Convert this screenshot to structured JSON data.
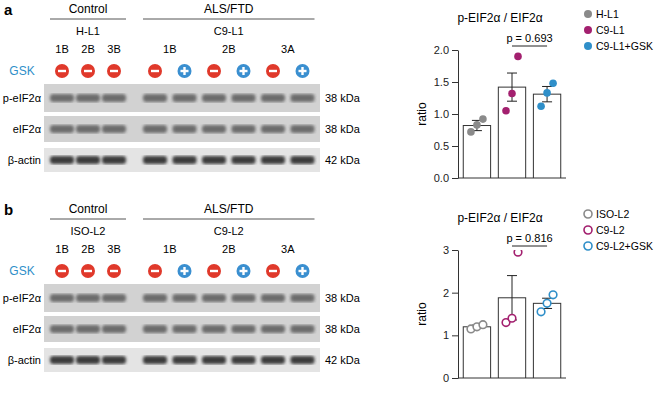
{
  "panel_labels": [
    "a",
    "b"
  ],
  "blots": [
    {
      "treatment_label": "GSK",
      "groups": [
        {
          "label": "Control",
          "sublabel": "H-L1",
          "lane_labels": [
            "1B",
            "2B",
            "3B"
          ],
          "lane_spans": [
            1,
            1,
            1
          ]
        },
        {
          "label": "ALS/FTD",
          "sublabel": "C9-L1",
          "lane_labels": [
            "1B",
            "2B",
            "3A"
          ],
          "lane_spans": [
            2,
            2,
            2
          ]
        }
      ],
      "gsk": [
        false,
        false,
        false,
        false,
        true,
        false,
        true,
        false,
        true
      ],
      "rows": [
        {
          "label": "p-eIF2α",
          "size": "38 kDa"
        },
        {
          "label": "eIF2α",
          "size": "38 kDa"
        },
        {
          "label": "β-actin",
          "size": "42 kDa"
        }
      ]
    },
    {
      "treatment_label": "GSK",
      "groups": [
        {
          "label": "Control",
          "sublabel": "ISO-L2",
          "lane_labels": [
            "1B",
            "2B",
            "3B"
          ],
          "lane_spans": [
            1,
            1,
            1
          ]
        },
        {
          "label": "ALS/FTD",
          "sublabel": "C9-L2",
          "lane_labels": [
            "1B",
            "2B",
            "3A"
          ],
          "lane_spans": [
            2,
            2,
            2
          ]
        }
      ],
      "gsk": [
        false,
        false,
        false,
        false,
        true,
        false,
        true,
        false,
        true
      ],
      "rows": [
        {
          "label": "p-eIF2α",
          "size": "38 kDa"
        },
        {
          "label": "eIF2α",
          "size": "38 kDa"
        },
        {
          "label": "β-actin",
          "size": "42 kDa"
        }
      ]
    }
  ],
  "chart_data": [
    {
      "type": "bar",
      "title": "p-EIF2α / EIF2α",
      "y_label": "ratio",
      "categories": [
        "H-L1",
        "C9-L1",
        "C9-L1+GSK"
      ],
      "values": [
        0.82,
        1.42,
        1.31
      ],
      "errors": [
        0.08,
        0.22,
        0.12
      ],
      "points": [
        [
          0.72,
          0.83,
          0.92
        ],
        [
          1.05,
          1.32,
          1.9
        ],
        [
          1.12,
          1.33,
          1.48
        ]
      ],
      "colors": [
        "#8a8a8a",
        "#a3206f",
        "#2f8fc9"
      ],
      "marker": "filled",
      "ylim": [
        0,
        2
      ],
      "yticks": [
        {
          "value": 0,
          "label": "0.0"
        },
        0.5,
        {
          "value": 1,
          "label": "1.0"
        },
        1.5,
        {
          "value": 2,
          "label": "2.0"
        }
      ],
      "tick_labels": "y",
      "legend": "right",
      "annotations": [
        {
          "text": "p = 0.693",
          "categories": [
            "C9-L1",
            "C9-L1+GSK"
          ]
        }
      ]
    },
    {
      "type": "bar",
      "title": "p-EIF2α / EIF2α",
      "y_label": "ratio",
      "categories": [
        "ISO-L2",
        "C9-L2",
        "C9-L2+GSK"
      ],
      "values": [
        1.2,
        1.88,
        1.75
      ],
      "errors": [
        0.04,
        0.52,
        0.12
      ],
      "points": [
        [
          1.15,
          1.2,
          1.25
        ],
        [
          1.3,
          1.4,
          2.95
        ],
        [
          1.55,
          1.75,
          1.95
        ]
      ],
      "colors": [
        "#8a8a8a",
        "#a3206f",
        "#2f8fc9"
      ],
      "marker": "open",
      "ylim": [
        0,
        3
      ],
      "yticks": [
        0,
        1,
        2,
        3
      ],
      "tick_labels": "y",
      "legend": "right",
      "annotations": [
        {
          "text": "p = 0.816",
          "categories": [
            "C9-L2",
            "C9-L2+GSK"
          ]
        }
      ]
    }
  ]
}
